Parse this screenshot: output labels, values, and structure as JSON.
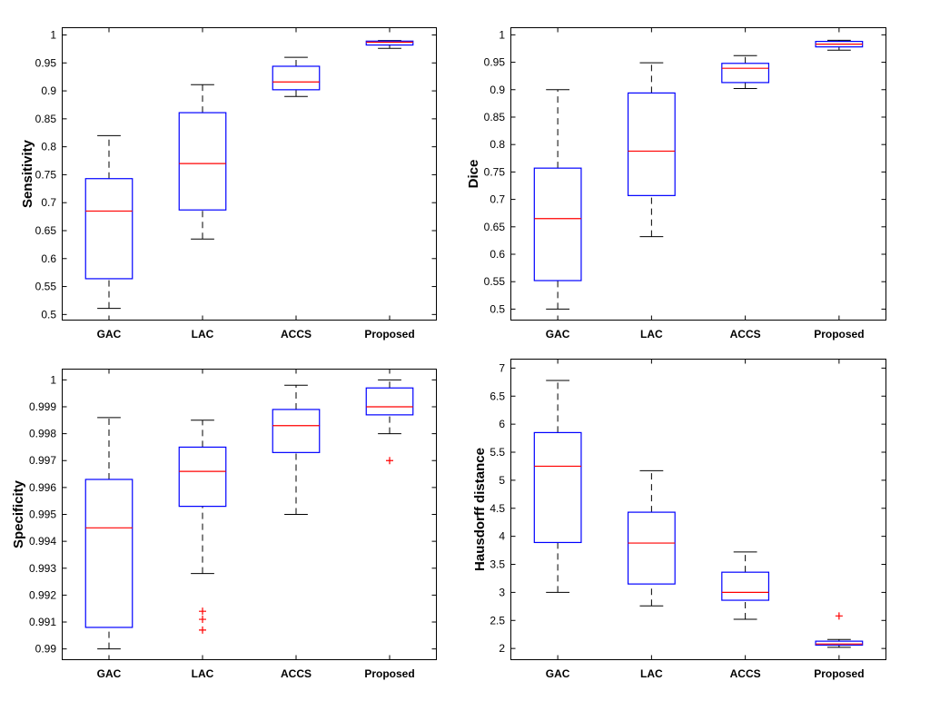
{
  "colors": {
    "background": "#FFFFFF",
    "axes": "#000000",
    "box_edge": "#0000FF",
    "median": "#FF0000",
    "whisker": "#000000",
    "outlier": "#FF0000"
  },
  "chart_data": [
    {
      "type": "box",
      "ylabel": "Sensitivity",
      "categories": [
        "GAC",
        "LAC",
        "ACCS",
        "Proposed"
      ],
      "ylim": [
        0.49,
        1.013
      ],
      "yticks": [
        0.5,
        0.55,
        0.6,
        0.65,
        0.7,
        0.75,
        0.8,
        0.85,
        0.9,
        0.95,
        1
      ],
      "ytick_labels": [
        "0.5",
        "0.55",
        "0.6",
        "0.65",
        "0.7",
        "0.75",
        "0.8",
        "0.85",
        "0.9",
        "0.95",
        "1"
      ],
      "grid": false,
      "legend": "none",
      "boxes": [
        {
          "lower_whisker": 0.511,
          "q1": 0.564,
          "median": 0.685,
          "q3": 0.743,
          "upper_whisker": 0.82,
          "outliers": []
        },
        {
          "lower_whisker": 0.635,
          "q1": 0.687,
          "median": 0.77,
          "q3": 0.861,
          "upper_whisker": 0.911,
          "outliers": []
        },
        {
          "lower_whisker": 0.89,
          "q1": 0.902,
          "median": 0.916,
          "q3": 0.944,
          "upper_whisker": 0.96,
          "outliers": []
        },
        {
          "lower_whisker": 0.976,
          "q1": 0.982,
          "median": 0.987,
          "q3": 0.989,
          "upper_whisker": 0.99,
          "outliers": []
        }
      ]
    },
    {
      "type": "box",
      "ylabel": "Dice",
      "categories": [
        "GAC",
        "LAC",
        "ACCS",
        "Proposed"
      ],
      "ylim": [
        0.48,
        1.013
      ],
      "yticks": [
        0.5,
        0.55,
        0.6,
        0.65,
        0.7,
        0.75,
        0.8,
        0.85,
        0.9,
        0.95,
        1
      ],
      "ytick_labels": [
        "0.5",
        "0.55",
        "0.6",
        "0.65",
        "0.7",
        "0.75",
        "0.8",
        "0.85",
        "0.9",
        "0.95",
        "1"
      ],
      "grid": false,
      "legend": "none",
      "boxes": [
        {
          "lower_whisker": 0.5,
          "q1": 0.552,
          "median": 0.665,
          "q3": 0.757,
          "upper_whisker": 0.9,
          "outliers": []
        },
        {
          "lower_whisker": 0.632,
          "q1": 0.707,
          "median": 0.788,
          "q3": 0.894,
          "upper_whisker": 0.949,
          "outliers": []
        },
        {
          "lower_whisker": 0.902,
          "q1": 0.913,
          "median": 0.939,
          "q3": 0.948,
          "upper_whisker": 0.962,
          "outliers": []
        },
        {
          "lower_whisker": 0.972,
          "q1": 0.978,
          "median": 0.983,
          "q3": 0.988,
          "upper_whisker": 0.99,
          "outliers": []
        }
      ]
    },
    {
      "type": "box",
      "ylabel": "Specificity",
      "categories": [
        "GAC",
        "LAC",
        "ACCS",
        "Proposed"
      ],
      "ylim": [
        0.9896,
        1.0004
      ],
      "yticks": [
        0.99,
        0.991,
        0.992,
        0.993,
        0.994,
        0.995,
        0.996,
        0.997,
        0.998,
        0.999,
        1
      ],
      "ytick_labels": [
        "0.99",
        "0.991",
        "0.992",
        "0.993",
        "0.994",
        "0.995",
        "0.996",
        "0.997",
        "0.998",
        "0.999",
        "1"
      ],
      "grid": false,
      "legend": "none",
      "boxes": [
        {
          "lower_whisker": 0.99,
          "q1": 0.9908,
          "median": 0.9945,
          "q3": 0.9963,
          "upper_whisker": 0.9986,
          "outliers": []
        },
        {
          "lower_whisker": 0.9928,
          "q1": 0.9953,
          "median": 0.9966,
          "q3": 0.9975,
          "upper_whisker": 0.9985,
          "outliers": [
            0.9914,
            0.9911,
            0.9907
          ]
        },
        {
          "lower_whisker": 0.995,
          "q1": 0.9973,
          "median": 0.9983,
          "q3": 0.9989,
          "upper_whisker": 0.9998,
          "outliers": []
        },
        {
          "lower_whisker": 0.998,
          "q1": 0.9987,
          "median": 0.999,
          "q3": 0.9997,
          "upper_whisker": 1.0,
          "outliers": [
            0.997
          ]
        }
      ]
    },
    {
      "type": "box",
      "ylabel": "Hausdorff distance",
      "categories": [
        "GAC",
        "LAC",
        "ACCS",
        "Proposed"
      ],
      "ylim": [
        1.8,
        7.16
      ],
      "yticks": [
        2,
        2.5,
        3,
        3.5,
        4,
        4.5,
        5,
        5.5,
        6,
        6.5,
        7
      ],
      "ytick_labels": [
        "2",
        "2.5",
        "3",
        "3.5",
        "4",
        "4.5",
        "5",
        "5.5",
        "6",
        "6.5",
        "7"
      ],
      "grid": false,
      "legend": "none",
      "boxes": [
        {
          "lower_whisker": 3.0,
          "q1": 3.89,
          "median": 5.25,
          "q3": 5.85,
          "upper_whisker": 6.78,
          "outliers": []
        },
        {
          "lower_whisker": 2.76,
          "q1": 3.15,
          "median": 3.88,
          "q3": 4.43,
          "upper_whisker": 5.17,
          "outliers": []
        },
        {
          "lower_whisker": 2.52,
          "q1": 2.86,
          "median": 3.0,
          "q3": 3.36,
          "upper_whisker": 3.72,
          "outliers": []
        },
        {
          "lower_whisker": 2.02,
          "q1": 2.06,
          "median": 2.08,
          "q3": 2.13,
          "upper_whisker": 2.16,
          "outliers": [
            2.58
          ]
        }
      ]
    }
  ]
}
